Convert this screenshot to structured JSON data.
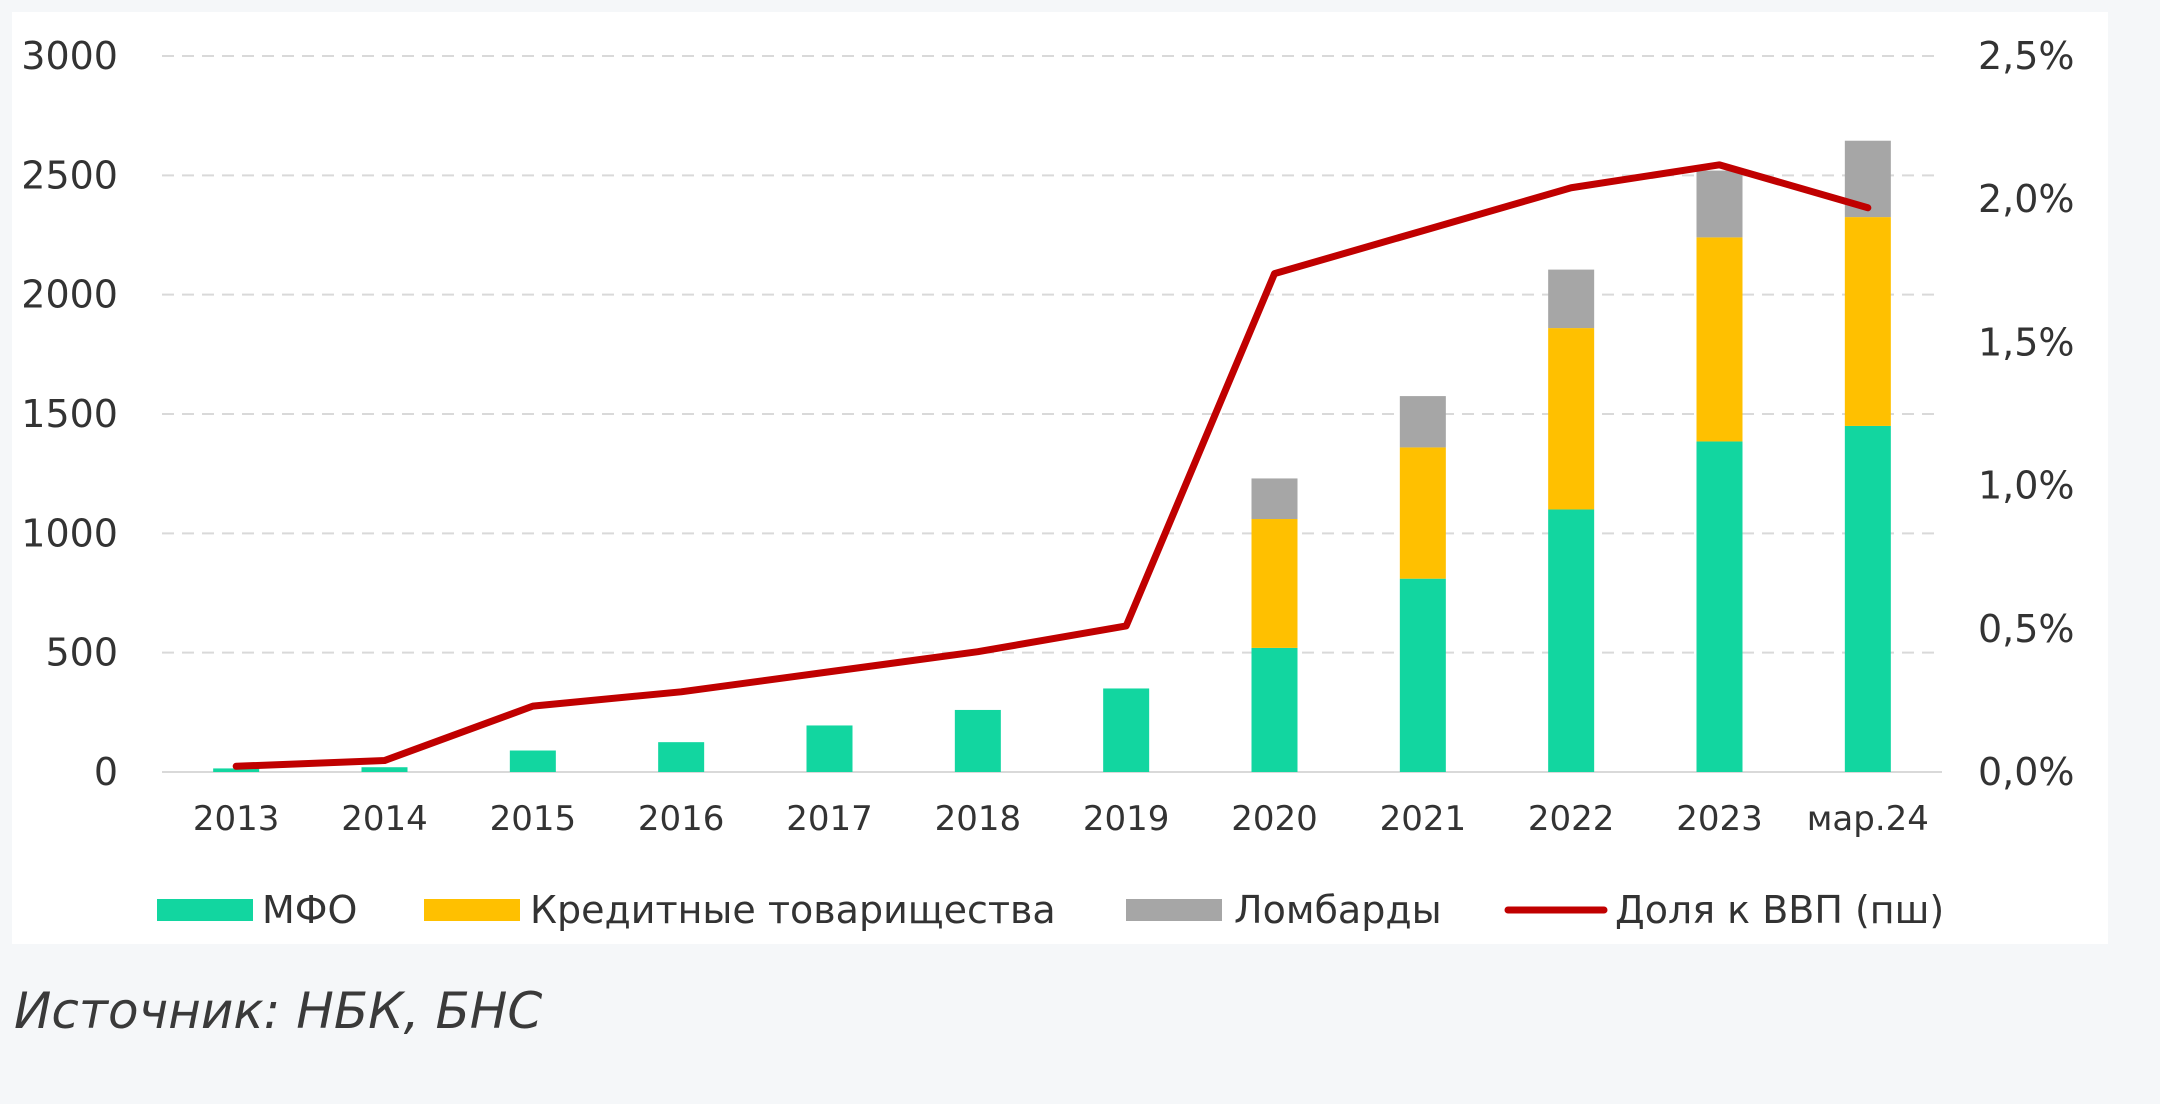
{
  "chart_data": {
    "type": "bar",
    "stacked": true,
    "categories": [
      "2013",
      "2014",
      "2015",
      "2016",
      "2017",
      "2018",
      "2019",
      "2020",
      "2021",
      "2022",
      "2023",
      "мар.24"
    ],
    "series": [
      {
        "name": "МФО",
        "type": "bar",
        "axis": "left",
        "color": "#12d6a0",
        "values": [
          15,
          20,
          90,
          125,
          195,
          260,
          350,
          520,
          810,
          1100,
          1385,
          1450
        ]
      },
      {
        "name": "Кредитные товарищества",
        "type": "bar",
        "axis": "left",
        "color": "#ffc000",
        "values": [
          0,
          0,
          0,
          0,
          0,
          0,
          0,
          540,
          550,
          760,
          855,
          875
        ]
      },
      {
        "name": "Ломбарды",
        "type": "bar",
        "axis": "left",
        "color": "#a6a6a6",
        "values": [
          0,
          0,
          0,
          0,
          0,
          0,
          0,
          170,
          215,
          245,
          280,
          320
        ]
      },
      {
        "name": "Доля к ВВП (пш)",
        "type": "line",
        "axis": "right",
        "color": "#c00000",
        "values": [
          0.02,
          0.04,
          0.23,
          0.28,
          0.35,
          0.42,
          0.51,
          1.74,
          1.89,
          2.04,
          2.12,
          1.97
        ]
      }
    ],
    "y_left": {
      "min": 0,
      "max": 3000,
      "ticks": [
        0,
        500,
        1000,
        1500,
        2000,
        2500,
        3000
      ],
      "tick_labels": [
        "0",
        "500",
        "1000",
        "1500",
        "2000",
        "2500",
        "3000"
      ]
    },
    "y_right": {
      "min": 0,
      "max": 2.5,
      "ticks": [
        0,
        0.5,
        1.0,
        1.5,
        2.0,
        2.5
      ],
      "tick_labels": [
        "0,0%",
        "0,5%",
        "1,0%",
        "1,5%",
        "2,0%",
        "2,5%"
      ]
    },
    "grid": "horizontal-dashed",
    "legend_position": "bottom",
    "title": "",
    "xlabel": "",
    "ylabel": ""
  },
  "source_note": "Источник: НБК, БНС"
}
